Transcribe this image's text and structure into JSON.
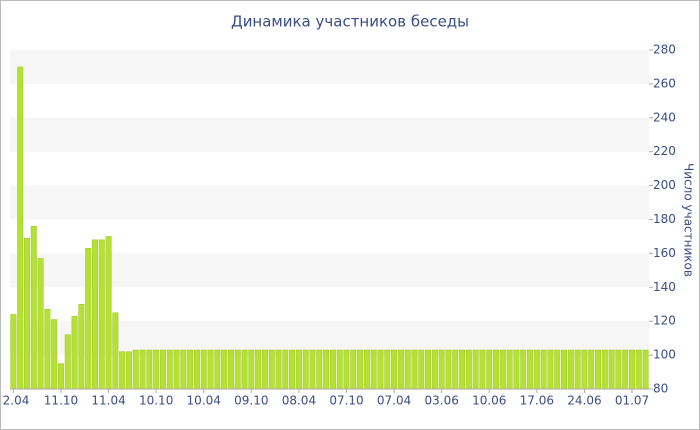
{
  "chart_data": {
    "type": "bar",
    "title": "Динамика участников беседы",
    "y_label": "Число участников",
    "categories": [
      "2.04",
      null,
      null,
      null,
      null,
      null,
      null,
      "11.10",
      null,
      null,
      null,
      null,
      null,
      null,
      "11.04",
      null,
      null,
      null,
      null,
      null,
      null,
      "10.10",
      null,
      null,
      null,
      null,
      null,
      null,
      "10.04",
      null,
      null,
      null,
      null,
      null,
      null,
      "09.10",
      null,
      null,
      null,
      null,
      null,
      null,
      "08.04",
      null,
      null,
      null,
      null,
      null,
      null,
      "07.10",
      null,
      null,
      null,
      null,
      null,
      null,
      "07.04",
      null,
      null,
      null,
      null,
      null,
      null,
      "03.06",
      null,
      null,
      null,
      null,
      null,
      null,
      "10.06",
      null,
      null,
      null,
      null,
      null,
      null,
      "17.06",
      null,
      null,
      null,
      null,
      null,
      null,
      "24.06",
      null,
      null,
      null,
      null,
      null,
      null,
      "01.07",
      null,
      null
    ],
    "values": [
      124,
      270,
      169,
      176,
      157,
      127,
      121,
      95,
      112,
      123,
      130,
      163,
      168,
      168,
      170,
      125,
      102,
      102,
      103,
      103,
      103,
      103,
      103,
      103,
      103,
      103,
      103,
      103,
      103,
      103,
      103,
      103,
      103,
      103,
      103,
      103,
      103,
      103,
      103,
      103,
      103,
      103,
      103,
      103,
      103,
      103,
      103,
      103,
      103,
      103,
      103,
      103,
      103,
      103,
      103,
      103,
      103,
      103,
      103,
      103,
      103,
      103,
      103,
      103,
      103,
      103,
      103,
      103,
      103,
      103,
      103,
      103,
      103,
      103,
      103,
      103,
      103,
      103,
      103,
      103,
      103,
      103,
      103,
      103,
      103,
      103,
      103,
      103,
      103,
      103,
      103,
      103,
      103,
      103
    ],
    "color": "#b5e036",
    "ylim": [
      80,
      280
    ],
    "yticks": [
      80,
      100,
      120,
      140,
      160,
      180,
      200,
      220,
      240,
      260,
      280
    ],
    "grid": true
  }
}
